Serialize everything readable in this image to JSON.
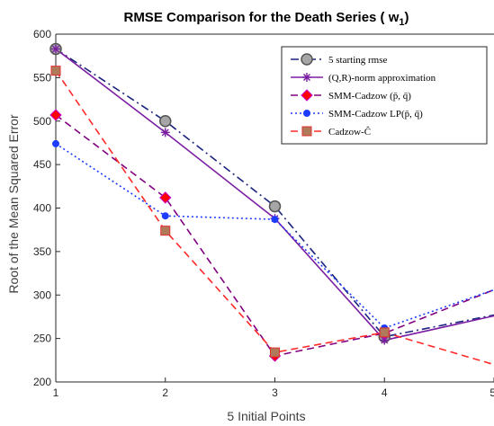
{
  "chart_data": {
    "type": "line",
    "title": "RMSE Comparison for the Death Series ( w",
    "title_subscript": "1",
    "title_suffix": ")",
    "xlabel": "5 Initial Points",
    "ylabel": "Root of the Mean Squared Error",
    "x": [
      1,
      2,
      3,
      4,
      5
    ],
    "xlim": [
      1,
      5
    ],
    "ylim": [
      200,
      600
    ],
    "xticks": [
      "1",
      "2",
      "3",
      "4",
      "5"
    ],
    "yticks": [
      "200",
      "250",
      "300",
      "350",
      "400",
      "450",
      "500",
      "550",
      "600"
    ],
    "grid": false,
    "legend_position": "top-right",
    "series": [
      {
        "name": "5 starting rmse",
        "values": [
          583,
          500,
          402,
          252,
          277
        ],
        "color": "#1a237e",
        "dash": "dashdot",
        "marker": "circle"
      },
      {
        "name": "(Q,R)-norm approximation",
        "values": [
          583,
          487,
          388,
          248,
          276
        ],
        "color": "#7b1fa2",
        "dash": "solid",
        "marker": "asterisk"
      },
      {
        "name": "SMM-Cadzow (p̄, q̄)",
        "values": [
          507,
          412,
          230,
          256,
          306
        ],
        "color": "#800080",
        "dash": "dashed",
        "marker": "diamond"
      },
      {
        "name": "SMM-Cadzow LP(p̄, q̄)",
        "values": [
          474,
          391,
          387,
          262,
          306
        ],
        "color": "#1e3cff",
        "dash": "dotted",
        "marker": "dot"
      },
      {
        "name": "Cadzow-Ĉ",
        "values": [
          558,
          374,
          234,
          257,
          220
        ],
        "color": "#ff2a2a",
        "dash": "dashed",
        "marker": "square"
      }
    ]
  }
}
